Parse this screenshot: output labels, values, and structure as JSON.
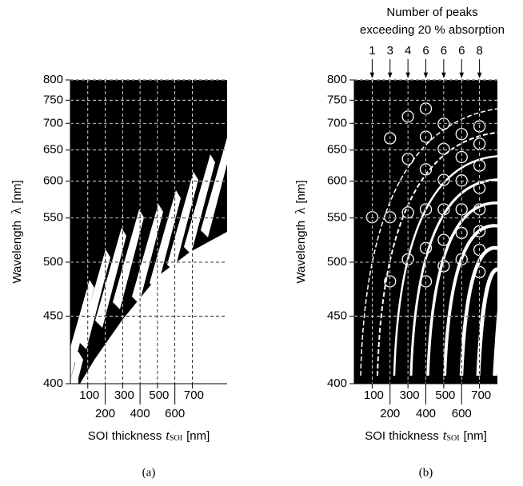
{
  "chart_data": [
    {
      "type": "map",
      "caption": "(a)",
      "ylabel": [
        "Wavelength",
        "λ",
        "[nm]"
      ],
      "xlabel": [
        "SOI thickness",
        "t",
        "SOI",
        "[nm]"
      ],
      "xlim": [
        0,
        900
      ],
      "xticks": [
        100,
        200,
        300,
        400,
        500,
        600,
        700
      ],
      "ylim": [
        400,
        800
      ],
      "yticks": [
        400,
        450,
        500,
        550,
        600,
        650,
        700,
        750,
        800
      ],
      "yscale": "reciprocal",
      "grid": true
    },
    {
      "type": "scatter",
      "caption": "(b)",
      "ylabel": [
        "Wavelength",
        "λ",
        "[nm]"
      ],
      "xlabel": [
        "SOI thickness",
        "t",
        "SOI",
        "[nm]"
      ],
      "xlim": [
        0,
        800
      ],
      "xticks": [
        100,
        200,
        300,
        400,
        500,
        600,
        700
      ],
      "ylim": [
        400,
        800
      ],
      "yticks": [
        400,
        450,
        500,
        550,
        600,
        650,
        700,
        750,
        800
      ],
      "yscale": "reciprocal",
      "grid": true,
      "annotation": [
        "Number of peaks",
        "exceeding 20 % absorption"
      ],
      "peak_counts": {
        "x": [
          100,
          200,
          300,
          400,
          500,
          600,
          700
        ],
        "values": [
          1,
          3,
          4,
          6,
          6,
          6,
          8
        ]
      },
      "series": [
        {
          "color": "#ffffff",
          "x": [
            100,
            200,
            200,
            200,
            300,
            300,
            300,
            300,
            400,
            400,
            400,
            400,
            400,
            400,
            500,
            500,
            500,
            500,
            500,
            500,
            600,
            600,
            600,
            600,
            600,
            600,
            700,
            700,
            700,
            700,
            700,
            700,
            700,
            700
          ],
          "values": [
            551,
            671,
            551,
            481,
            714,
            635,
            557,
            503,
            731,
            674,
            618,
            561,
            515,
            481,
            699,
            652,
            602,
            561,
            524,
            496,
            679,
            638,
            601,
            561,
            532,
            503,
            694,
            661,
            624,
            590,
            561,
            534,
            513,
            490
          ]
        }
      ]
    }
  ]
}
